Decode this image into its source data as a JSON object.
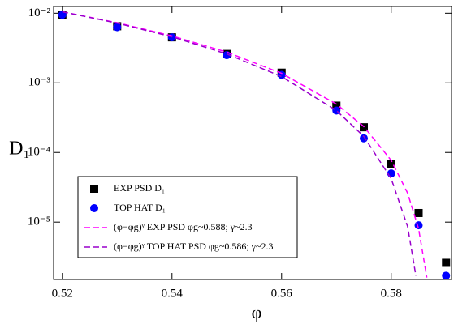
{
  "chart_data": {
    "type": "line",
    "x_label": "φ",
    "y_label": "D₁",
    "xlim": [
      0.5184,
      0.591
    ],
    "xticks": [
      0.52,
      0.54,
      0.56,
      0.58
    ],
    "ylim": [
      1.5e-06,
      0.0125
    ],
    "yticks": [
      {
        "value": 1e-05,
        "label": "10⁻⁵"
      },
      {
        "value": 0.0001,
        "label": "10⁻⁴"
      },
      {
        "value": 0.001,
        "label": "10⁻³"
      },
      {
        "value": 0.01,
        "label": "10⁻²"
      }
    ],
    "y_log": true,
    "legend": "lower left",
    "series": [
      {
        "name": "EXP PSD D₁",
        "color": "#000000",
        "marker": "square",
        "x": [
          0.52,
          0.53,
          0.54,
          0.55,
          0.56,
          0.57,
          0.575,
          0.58,
          0.585,
          0.59
        ],
        "values": [
          0.0095,
          0.0065,
          0.0045,
          0.0026,
          0.0014,
          0.00047,
          0.00023,
          6.9e-05,
          1.35e-05,
          2.6e-06
        ]
      },
      {
        "name": "TOP HAT D₁",
        "color": "#0000ff",
        "marker": "circle",
        "x": [
          0.52,
          0.53,
          0.54,
          0.55,
          0.56,
          0.57,
          0.575,
          0.58,
          0.585,
          0.59
        ],
        "values": [
          0.0095,
          0.0063,
          0.0045,
          0.0025,
          0.0013,
          0.0004,
          0.00016,
          5e-05,
          9e-06,
          1.7e-06
        ]
      },
      {
        "name": "(φ−φg)ᵞ EXP PSD φg~0.588; γ~2.3",
        "color": "#ff00ff",
        "marker": "dashed",
        "x": [
          0.52,
          0.53,
          0.54,
          0.55,
          0.56,
          0.57,
          0.575,
          0.58,
          0.583,
          0.585,
          0.5865
        ],
        "values": [
          0.0105,
          0.0073,
          0.00472,
          0.00276,
          0.00137,
          0.000495,
          0.000235,
          7.7e-05,
          2.6e-05,
          8e-06,
          1.6e-06
        ]
      },
      {
        "name": "(φ−φg)ᵞ TOP HAT PSD φg~0.586; γ~2.3",
        "color": "#9900cc",
        "marker": "dashed",
        "x": [
          0.52,
          0.53,
          0.54,
          0.55,
          0.56,
          0.57,
          0.575,
          0.58,
          0.583,
          0.5845
        ],
        "values": [
          0.0105,
          0.0072,
          0.00458,
          0.0026,
          0.00123,
          0.0004,
          0.00017,
          4.2e-05,
          8.6e-06,
          1.7e-06
        ]
      }
    ]
  }
}
